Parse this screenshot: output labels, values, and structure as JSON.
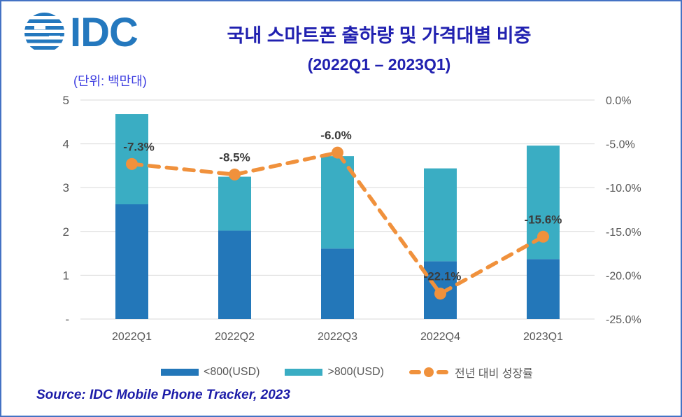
{
  "header": {
    "logo_text": "IDC",
    "title": "국내 스마트폰 출하량 및 가격대별 비중",
    "subtitle": "(2022Q1 – 2023Q1)",
    "unit_label": "(단위: 백만대)"
  },
  "chart_data": {
    "type": "bar",
    "subtype": "stacked-bar-with-line",
    "categories": [
      "2022Q1",
      "2022Q2",
      "2022Q3",
      "2022Q4",
      "2023Q1"
    ],
    "bar_series": [
      {
        "name": "<800(USD)",
        "color": "#2377B9",
        "values": [
          2.62,
          2.02,
          1.61,
          1.32,
          1.37
        ]
      },
      {
        "name": ">800(USD)",
        "color": "#3AADC3",
        "values": [
          2.06,
          1.23,
          2.11,
          2.12,
          2.59
        ]
      }
    ],
    "line_series": {
      "name": "전년 대비 성장률",
      "color": "#F0913C",
      "axis": "right",
      "values": [
        -7.3,
        -8.5,
        -6.0,
        -22.1,
        -15.6
      ],
      "labels": [
        "-7.3%",
        "-8.5%",
        "-6.0%",
        "-22.1%",
        "-15.6%"
      ]
    },
    "left_axis": {
      "min": 0,
      "max": 5,
      "ticks": [
        "5",
        "4",
        "3",
        "2",
        "1",
        "-"
      ]
    },
    "right_axis": {
      "min": -25,
      "max": 0,
      "ticks": [
        "0.0%",
        "-5.0%",
        "-10.0%",
        "-15.0%",
        "-20.0%",
        "-25.0%"
      ]
    },
    "grid": true,
    "legend_position": "bottom",
    "title": "국내 스마트폰 출하량 및 가격대별 비중 (2022Q1 – 2023Q1)",
    "ylabel_left_unit": "백만대"
  },
  "legend": {
    "items": [
      {
        "label": "<800(USD)",
        "type": "bar",
        "color": "#2377B9"
      },
      {
        "label": ">800(USD)",
        "type": "bar",
        "color": "#3AADC3"
      },
      {
        "label": "전년 대비 성장률",
        "type": "dashed-line",
        "color": "#F0913C"
      }
    ]
  },
  "source": "Source: IDC Mobile Phone Tracker, 2023",
  "colors": {
    "border": "#4472C4",
    "title": "#2121B0",
    "unit_label": "#3C3CE0",
    "source": "#1C1CA8",
    "logo": "#2478BE",
    "gridline": "#D9D9D9",
    "axis_text": "#595959",
    "data_label": "#3B3B3B"
  }
}
